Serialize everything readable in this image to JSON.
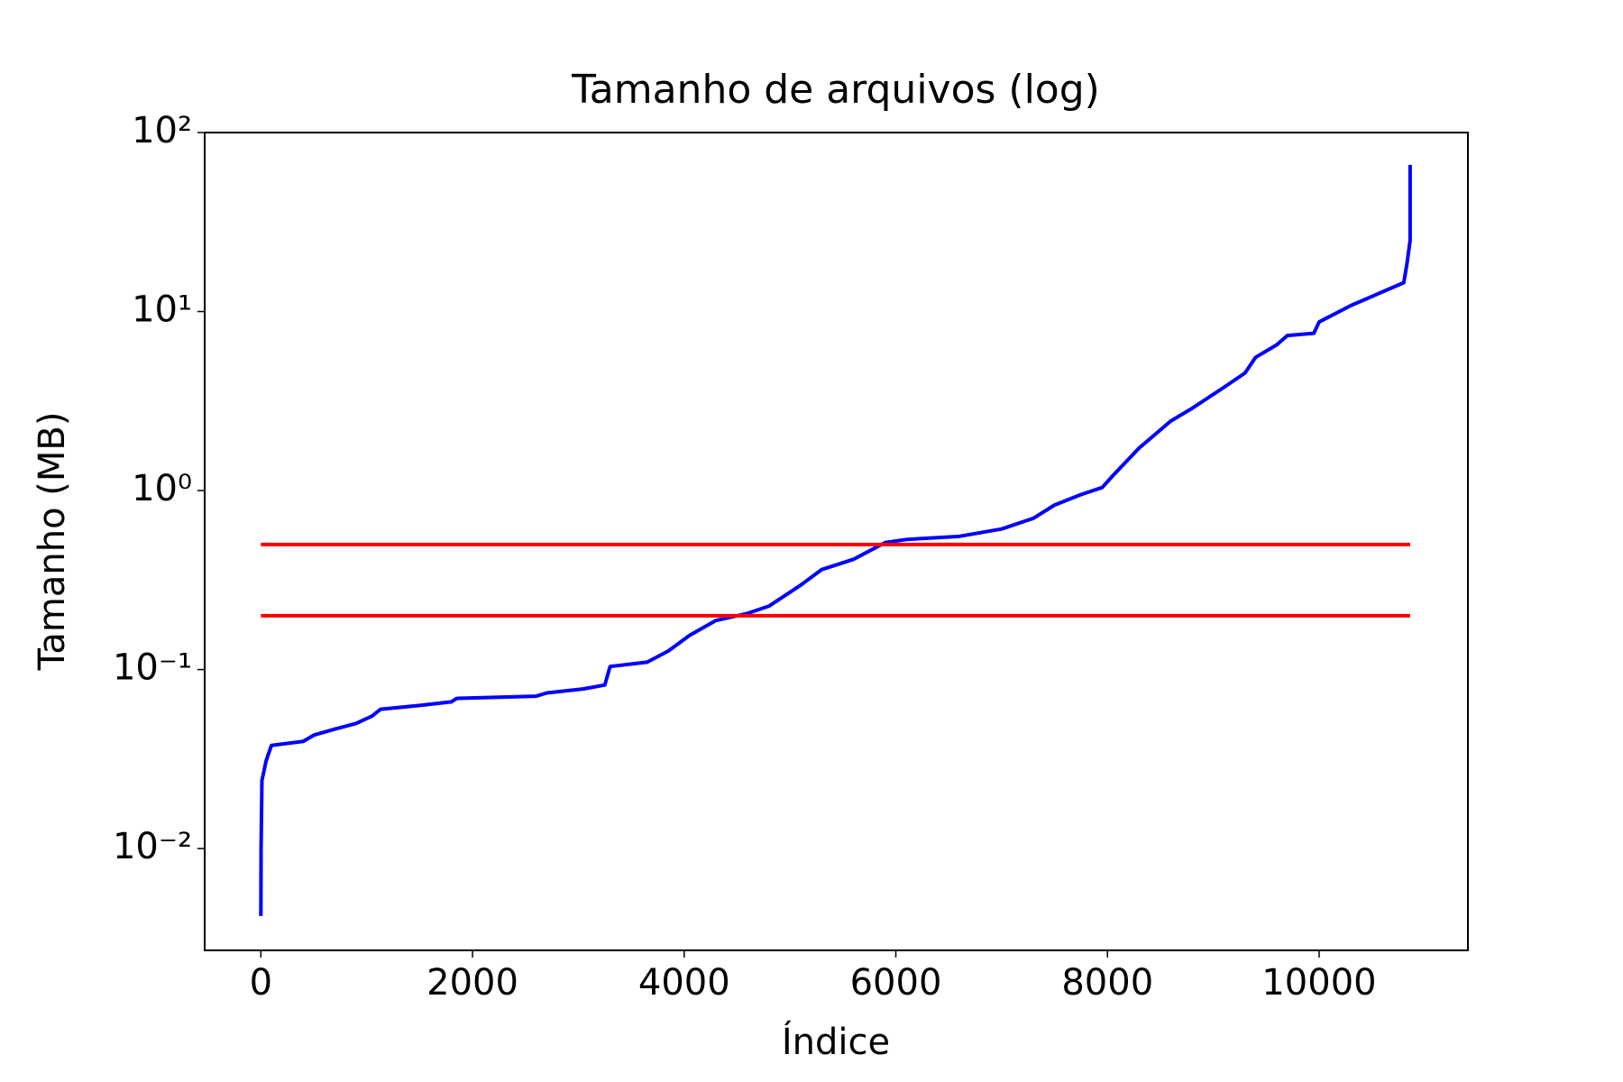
{
  "chart_data": {
    "type": "line",
    "title": "Tamanho de arquivos (log)",
    "xlabel": "Índice",
    "ylabel": "Tamanho (MB)",
    "xlim": [
      -531,
      11406
    ],
    "xticks": [
      0,
      2000,
      4000,
      6000,
      8000,
      10000
    ],
    "ylim": [
      0.0027,
      100
    ],
    "ylog": true,
    "yticks": [
      {
        "value": 0.01,
        "label": "10⁻²"
      },
      {
        "value": 0.1,
        "label": "10⁻¹"
      },
      {
        "value": 1,
        "label": "10⁰"
      },
      {
        "value": 10,
        "label": "10¹"
      },
      {
        "value": 100,
        "label": "10²"
      }
    ],
    "series": [
      {
        "color": "#0000ff",
        "x": [
          0,
          2,
          10,
          50,
          100,
          400,
          500,
          700,
          900,
          1050,
          1130,
          1500,
          1800,
          1850,
          2600,
          2700,
          3050,
          3250,
          3300,
          3650,
          3850,
          4050,
          4300,
          4600,
          4800,
          5100,
          5300,
          5600,
          5900,
          6100,
          6600,
          7000,
          7300,
          7500,
          7750,
          7950,
          8050,
          8300,
          8600,
          8800,
          9100,
          9300,
          9400,
          9600,
          9700,
          9950,
          10000,
          10300,
          10800,
          10830,
          10860,
          10860
        ],
        "values": [
          0.0042,
          0.01,
          0.024,
          0.031,
          0.0377,
          0.0397,
          0.043,
          0.0465,
          0.05,
          0.055,
          0.06,
          0.063,
          0.066,
          0.069,
          0.071,
          0.074,
          0.078,
          0.082,
          0.104,
          0.11,
          0.127,
          0.155,
          0.188,
          0.206,
          0.226,
          0.296,
          0.362,
          0.413,
          0.512,
          0.533,
          0.555,
          0.61,
          0.7,
          0.83,
          0.95,
          1.04,
          1.21,
          1.73,
          2.45,
          2.88,
          3.77,
          4.54,
          5.55,
          6.52,
          7.35,
          7.56,
          8.75,
          10.8,
          14.5,
          18.5,
          25,
          66
        ]
      },
      {
        "color": "#ff0000",
        "x": [
          0,
          10860
        ],
        "values": [
          0.5,
          0.5
        ]
      },
      {
        "color": "#ff0000",
        "x": [
          0,
          10860
        ],
        "values": [
          0.2,
          0.2
        ]
      }
    ]
  }
}
